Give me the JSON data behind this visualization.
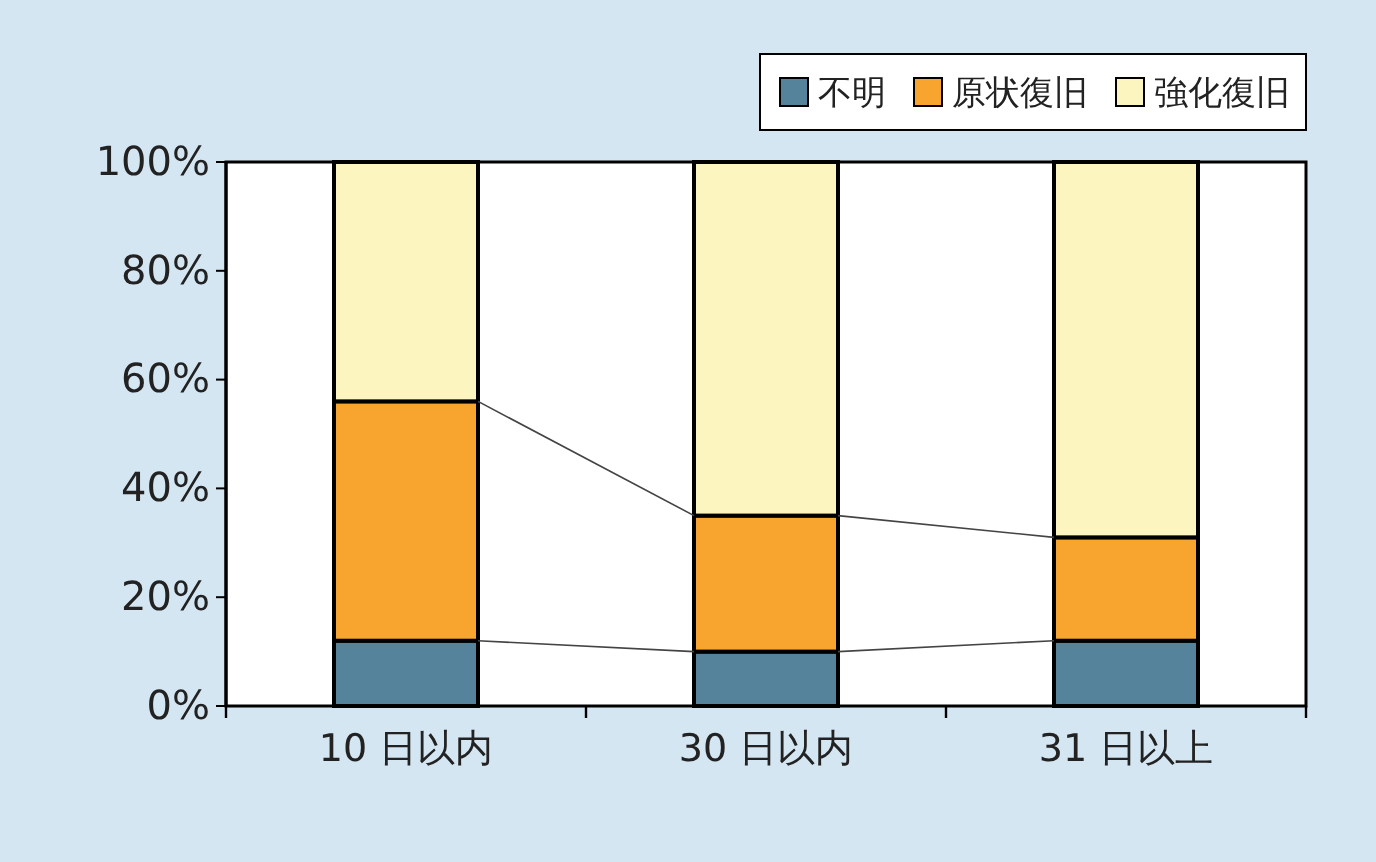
{
  "chart_data": {
    "type": "bar",
    "stacked": true,
    "categories": [
      "10 日以内",
      "30 日以内",
      "31 日以上"
    ],
    "series": [
      {
        "name": "不明",
        "color": "#55839b",
        "values": [
          12,
          10,
          12
        ]
      },
      {
        "name": "原状復旧",
        "color": "#f8a52f",
        "values": [
          44,
          25,
          19
        ]
      },
      {
        "name": "強化復旧",
        "color": "#fdf5c0",
        "values": [
          44,
          65,
          69
        ]
      }
    ],
    "ylim": [
      0,
      100
    ],
    "yticks": [
      {
        "value": 0,
        "label": "0%"
      },
      {
        "value": 20,
        "label": "20%"
      },
      {
        "value": 40,
        "label": "40%"
      },
      {
        "value": 60,
        "label": "60%"
      },
      {
        "value": 80,
        "label": "80%"
      },
      {
        "value": 100,
        "label": "100%"
      }
    ],
    "grid": false,
    "legend": "top right"
  }
}
